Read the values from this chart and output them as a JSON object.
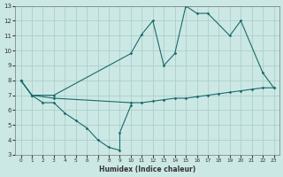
{
  "xlabel": "Humidex (Indice chaleur)",
  "bg_color": "#cce8e4",
  "grid_color": "#aacfcc",
  "line_color": "#1a6b6b",
  "xlim": [
    -0.5,
    23.5
  ],
  "ylim": [
    3,
    13
  ],
  "xticks": [
    0,
    1,
    2,
    3,
    4,
    5,
    6,
    7,
    8,
    9,
    10,
    11,
    12,
    13,
    14,
    15,
    16,
    17,
    18,
    19,
    20,
    21,
    22,
    23
  ],
  "yticks": [
    3,
    4,
    5,
    6,
    7,
    8,
    9,
    10,
    11,
    12,
    13
  ],
  "line1_x": [
    0,
    1,
    2,
    3,
    4,
    5,
    6,
    7,
    8,
    9,
    9,
    10
  ],
  "line1_y": [
    8,
    7,
    6.5,
    6.5,
    5.8,
    5.3,
    4.8,
    4.0,
    3.5,
    3.3,
    4.5,
    6.3
  ],
  "line2_x": [
    0,
    1,
    3,
    10,
    11,
    12,
    13,
    14,
    15,
    16,
    17,
    19,
    20,
    22,
    23
  ],
  "line2_y": [
    8,
    7,
    7.0,
    9.8,
    11.1,
    12.0,
    9.0,
    9.8,
    13.0,
    12.5,
    12.5,
    11.0,
    12.0,
    8.5,
    7.5
  ],
  "line3_x": [
    0,
    1,
    3,
    10,
    11,
    12,
    13,
    14,
    15,
    16,
    17,
    18,
    19,
    20,
    21,
    22,
    23
  ],
  "line3_y": [
    8,
    7,
    6.8,
    6.5,
    6.5,
    6.6,
    6.7,
    6.8,
    6.8,
    6.9,
    7.0,
    7.1,
    7.2,
    7.3,
    7.4,
    7.5,
    7.5
  ]
}
